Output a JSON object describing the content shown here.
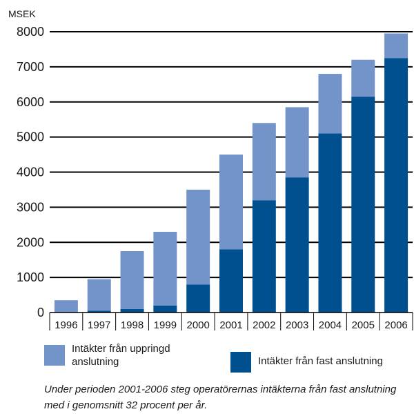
{
  "chart_data": {
    "type": "bar",
    "stacked": true,
    "unit_label": "MSEK",
    "categories": [
      "1996",
      "1997",
      "1998",
      "1999",
      "2000",
      "2001",
      "2002",
      "2003",
      "2004",
      "2005",
      "2006"
    ],
    "series": [
      {
        "name": "Intäkter från fast anslutning",
        "color": "#00508f",
        "values": [
          0,
          50,
          100,
          200,
          800,
          1800,
          3200,
          3850,
          5100,
          6150,
          7250
        ]
      },
      {
        "name": "Intäkter från uppringd anslutning",
        "color": "#7394c9",
        "values": [
          350,
          900,
          1650,
          2100,
          2700,
          2700,
          2200,
          2000,
          1700,
          1050,
          700
        ]
      }
    ],
    "yticks": [
      0,
      1000,
      2000,
      3000,
      4000,
      5000,
      6000,
      7000,
      8000
    ],
    "ylim": [
      0,
      8000
    ],
    "grid": true
  },
  "legend": {
    "uppringd": "Intäkter från uppringd anslutning",
    "fast": "Intäkter från fast anslutning"
  },
  "caption": "Under perioden 2001-2006 steg operatörernas intäkterna från fast anslutning med i genomsnitt 32 procent per år.",
  "colors": {
    "dark": "#00508f",
    "light": "#7394c9"
  }
}
